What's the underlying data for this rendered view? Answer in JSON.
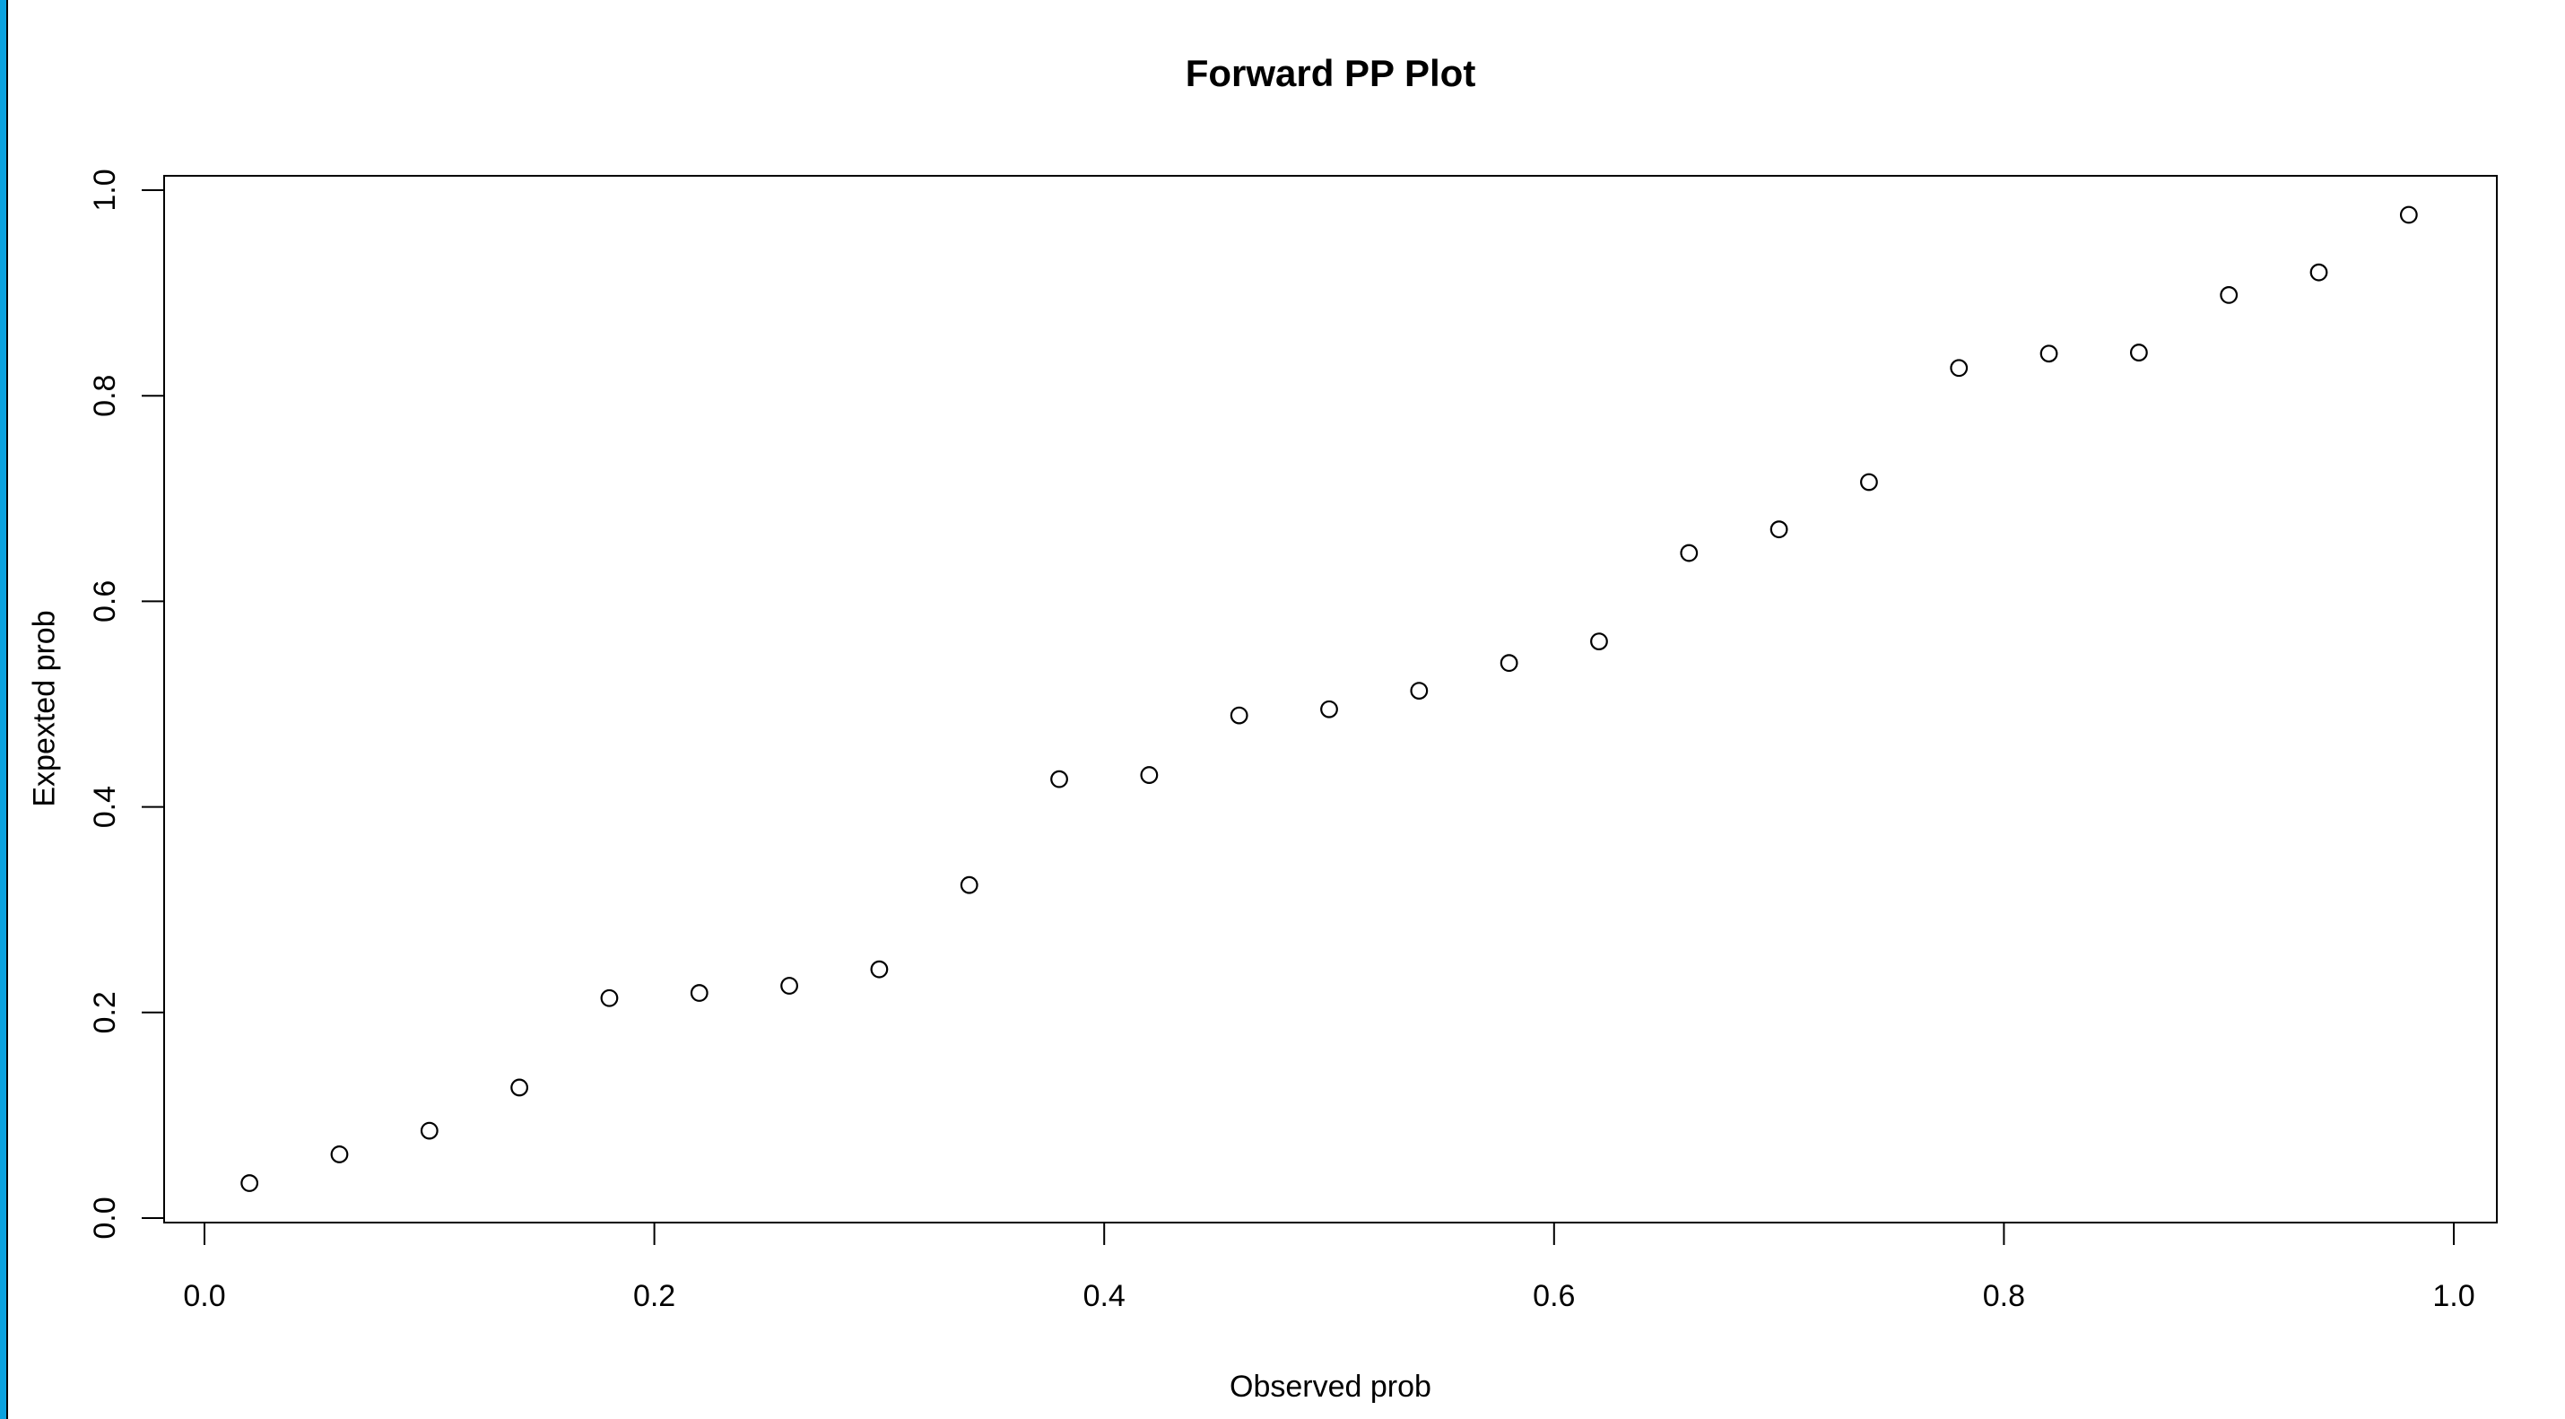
{
  "window": {
    "accent_bar_color": "#0aa2df",
    "background_color": "#ffffff"
  },
  "chart_data": {
    "type": "scatter",
    "title": "Forward PP Plot",
    "xlabel": "Observed prob",
    "ylabel": "Expexted prob",
    "marker": "open-circle",
    "point_color": "#000000",
    "axis_color": "#000000",
    "background": "#ffffff",
    "grid": false,
    "legend": "none",
    "xlim": [
      -0.018,
      1.019
    ],
    "ylim": [
      -0.004,
      1.014
    ],
    "x_ticks": [
      0.0,
      0.2,
      0.4,
      0.6,
      0.8,
      1.0
    ],
    "x_tick_labels": [
      "0.0",
      "0.2",
      "0.4",
      "0.6",
      "0.8",
      "1.0"
    ],
    "y_ticks": [
      0.0,
      0.2,
      0.4,
      0.6,
      0.8,
      1.0
    ],
    "y_tick_labels": [
      "0.0",
      "0.2",
      "0.4",
      "0.6",
      "0.8",
      "1.0"
    ],
    "x": [
      0.02,
      0.06,
      0.1,
      0.14,
      0.18,
      0.22,
      0.26,
      0.3,
      0.34,
      0.38,
      0.42,
      0.46,
      0.5,
      0.54,
      0.58,
      0.62,
      0.66,
      0.7,
      0.74,
      0.78,
      0.82,
      0.86,
      0.9,
      0.94,
      0.98
    ],
    "y": [
      0.034,
      0.062,
      0.085,
      0.127,
      0.214,
      0.219,
      0.226,
      0.242,
      0.324,
      0.427,
      0.431,
      0.489,
      0.495,
      0.513,
      0.54,
      0.561,
      0.647,
      0.67,
      0.716,
      0.827,
      0.841,
      0.842,
      0.898,
      0.92,
      0.976
    ]
  }
}
